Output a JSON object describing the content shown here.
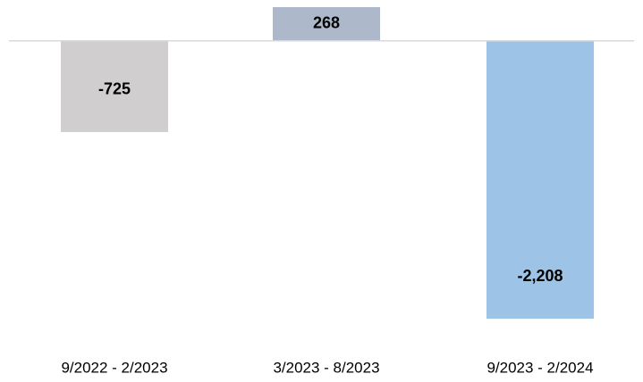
{
  "chart_data": {
    "type": "bar",
    "categories": [
      "9/2022 - 2/2023",
      "3/2023 - 8/2023",
      "9/2023 - 2/2024"
    ],
    "values": [
      -725,
      268,
      -2208
    ],
    "value_labels": [
      "-725",
      "268",
      "-2,208"
    ],
    "colors": [
      "#d0cece",
      "#adb9ca",
      "#9dc3e6"
    ]
  }
}
